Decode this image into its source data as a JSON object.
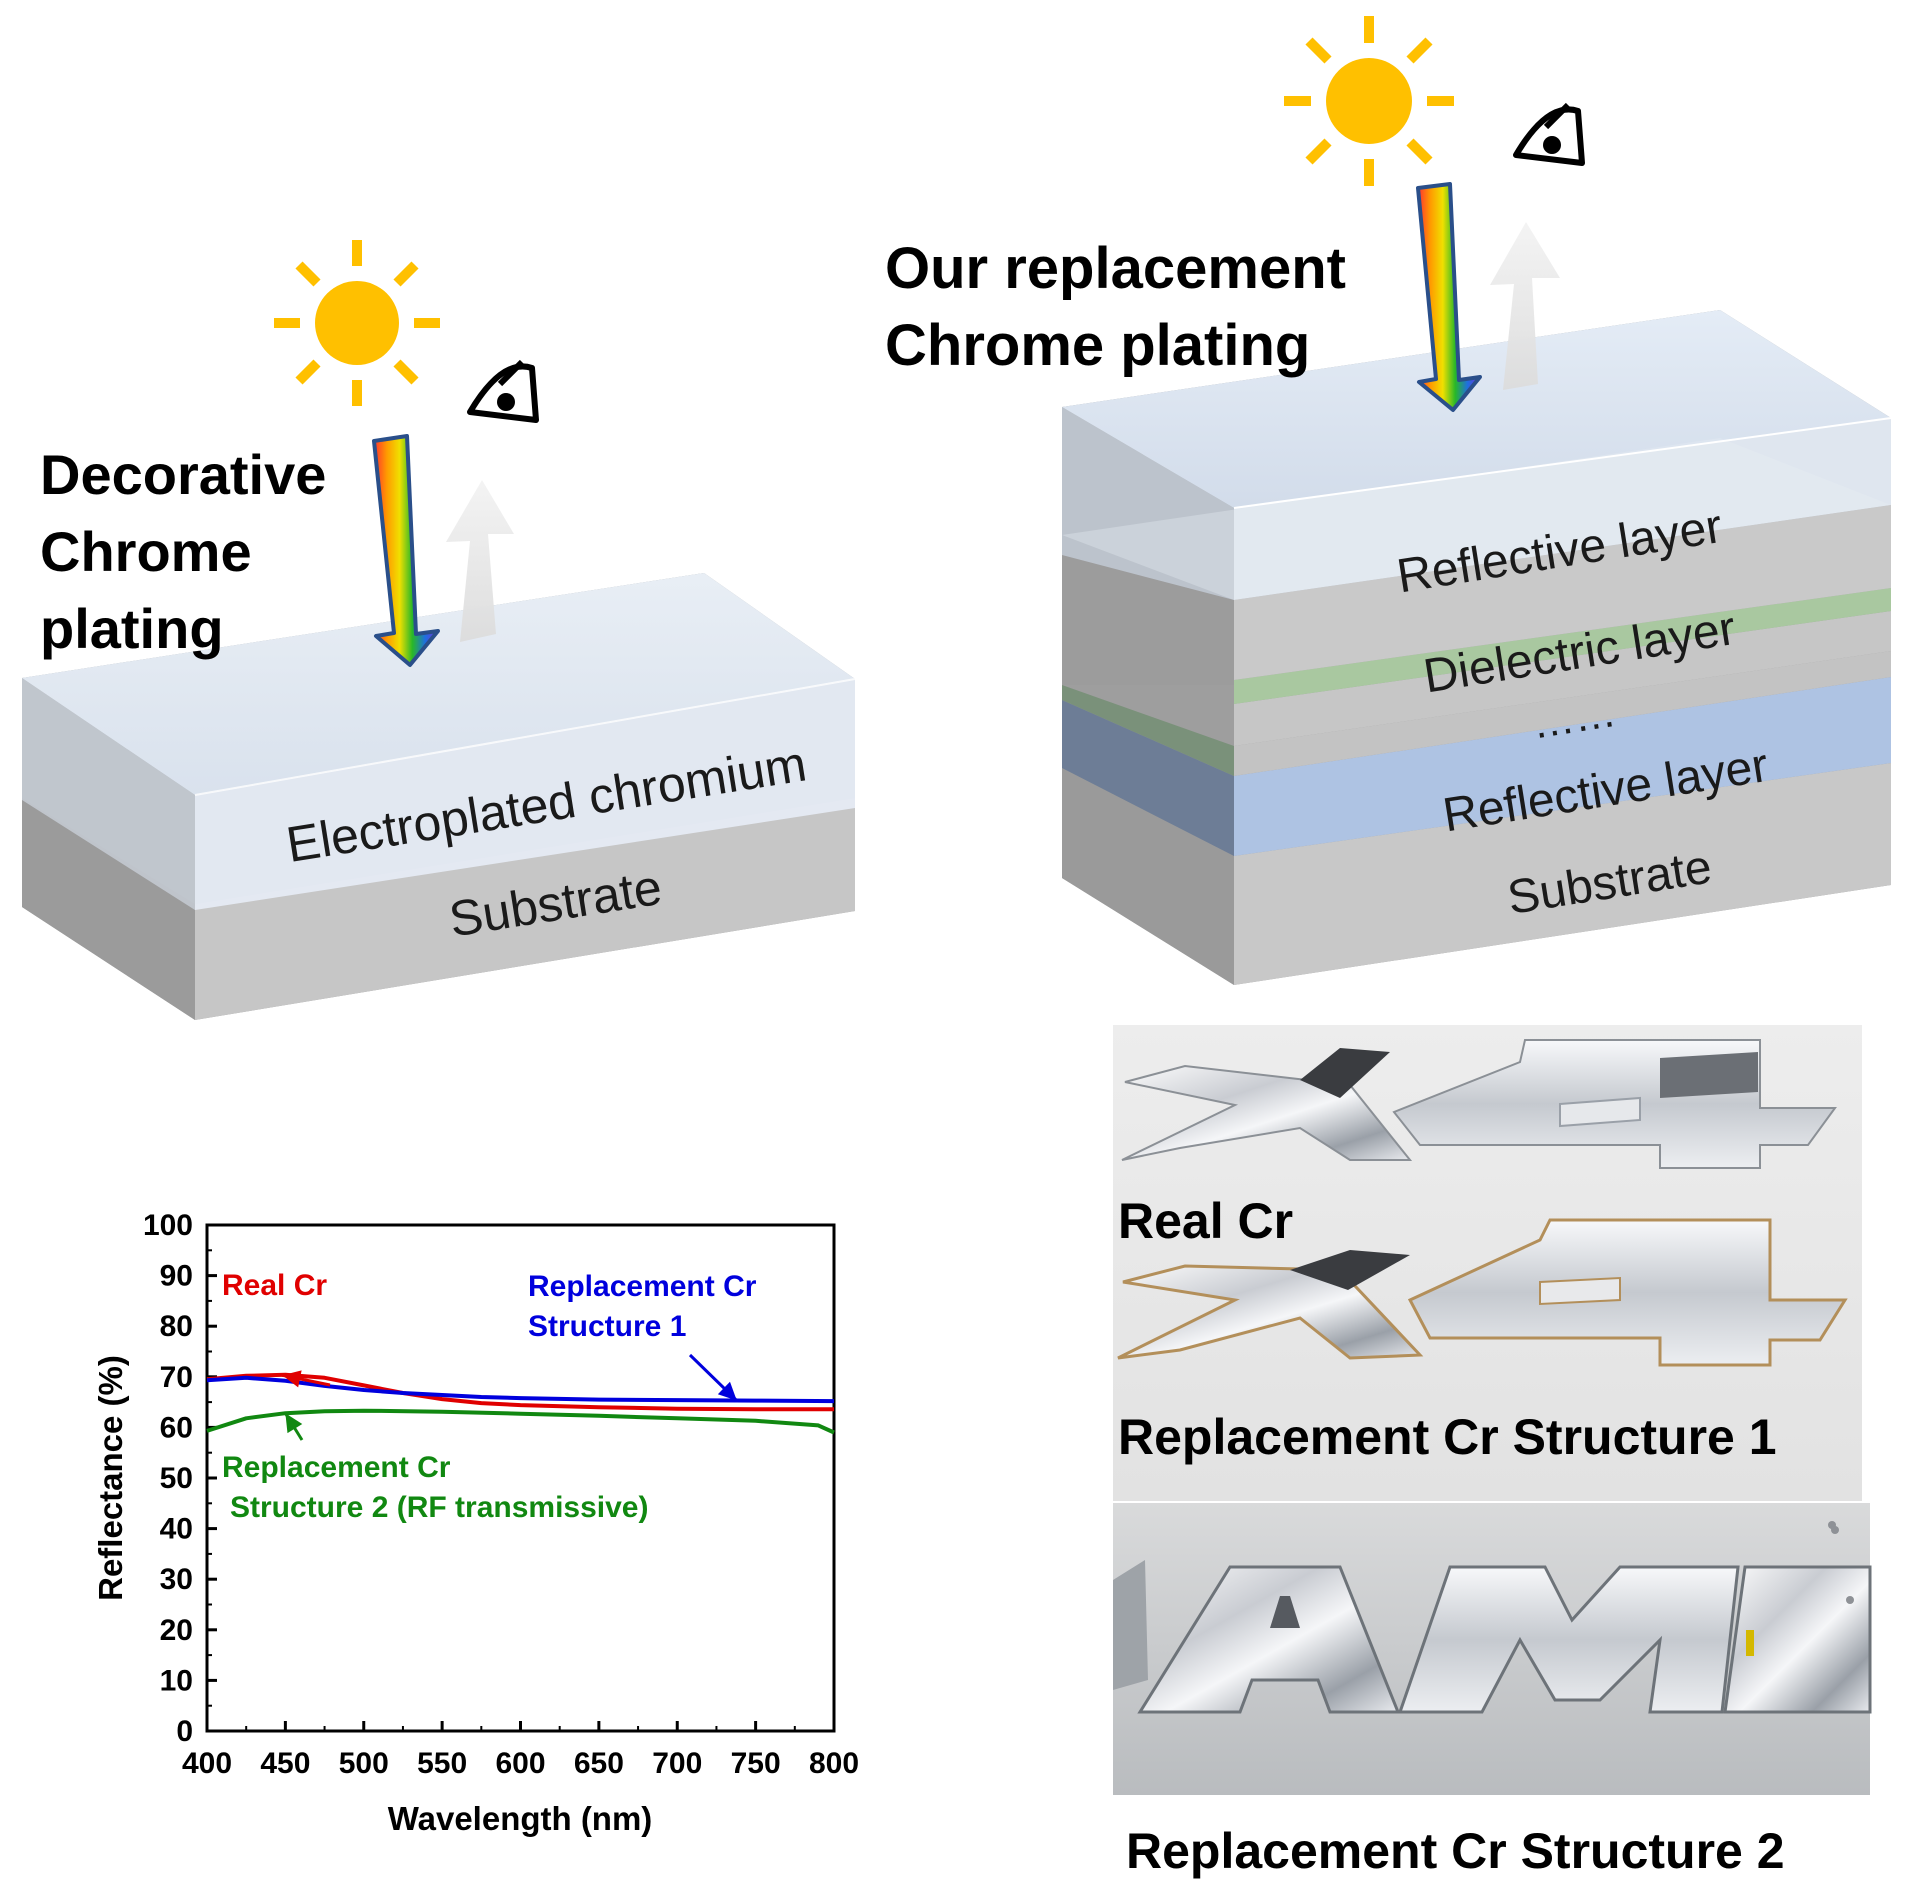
{
  "left_panel": {
    "title_lines": [
      "Decorative",
      "Chrome",
      "plating"
    ],
    "layers": [
      "Electroplated chromium",
      "Substrate"
    ]
  },
  "right_panel": {
    "title_lines": [
      "Our replacement",
      "Chrome plating"
    ],
    "layers": [
      "Reflective layer",
      "Dielectric layer",
      "……",
      "Reflective layer",
      "Substrate"
    ]
  },
  "photos": {
    "real": {
      "caption": "Real Cr"
    },
    "structure1": {
      "caption": "Replacement Cr Structure 1"
    },
    "structure2": {
      "caption": "Replacement Cr Structure 2"
    }
  },
  "colors": {
    "sun": "#ffc000",
    "real_cr": "#e00000",
    "structure1": "#0000dd",
    "structure2": "#118811"
  },
  "chart_data": {
    "type": "line",
    "xlabel": "Wavelength (nm)",
    "ylabel": "Reflectance (%)",
    "xlim": [
      400,
      800
    ],
    "ylim": [
      0,
      100
    ],
    "xticks": [
      400,
      450,
      500,
      550,
      600,
      650,
      700,
      750,
      800
    ],
    "yticks": [
      0,
      10,
      20,
      30,
      40,
      50,
      60,
      70,
      80,
      90,
      100
    ],
    "grid": false,
    "series": [
      {
        "name": "Real Cr",
        "color": "#e00000",
        "x": [
          400,
          425,
          450,
          475,
          500,
          525,
          550,
          575,
          600,
          650,
          700,
          750,
          800
        ],
        "y": [
          69.5,
          70.2,
          70.4,
          69.8,
          68.3,
          66.8,
          65.6,
          64.8,
          64.4,
          64.0,
          63.7,
          63.6,
          63.6
        ]
      },
      {
        "name": "Replacement Cr Structure 1",
        "color": "#0000dd",
        "x": [
          400,
          425,
          450,
          475,
          500,
          525,
          550,
          575,
          600,
          650,
          700,
          750,
          800
        ],
        "y": [
          69.3,
          69.8,
          69.2,
          68.2,
          67.4,
          66.8,
          66.4,
          66.0,
          65.8,
          65.5,
          65.4,
          65.3,
          65.2
        ]
      },
      {
        "name": "Replacement Cr Structure 2 (RF transmissive)",
        "color": "#118811",
        "x": [
          400,
          425,
          450,
          475,
          500,
          550,
          600,
          650,
          700,
          750,
          790,
          800
        ],
        "y": [
          59.3,
          61.8,
          62.8,
          63.2,
          63.3,
          63.1,
          62.7,
          62.3,
          61.8,
          61.3,
          60.4,
          59.0
        ]
      }
    ],
    "annotations": [
      {
        "lines": [
          "Real Cr"
        ],
        "color": "#e00000",
        "arrow_to": [
          448,
          70.3
        ]
      },
      {
        "lines": [
          "Replacement Cr",
          "Structure 1"
        ],
        "color": "#0000dd",
        "arrow_to": [
          738,
          65.3
        ]
      },
      {
        "lines": [
          "Replacement Cr",
          "Structure 2 (RF transmissive)"
        ],
        "color": "#118811",
        "arrow_to": [
          450,
          62.8
        ]
      }
    ]
  }
}
